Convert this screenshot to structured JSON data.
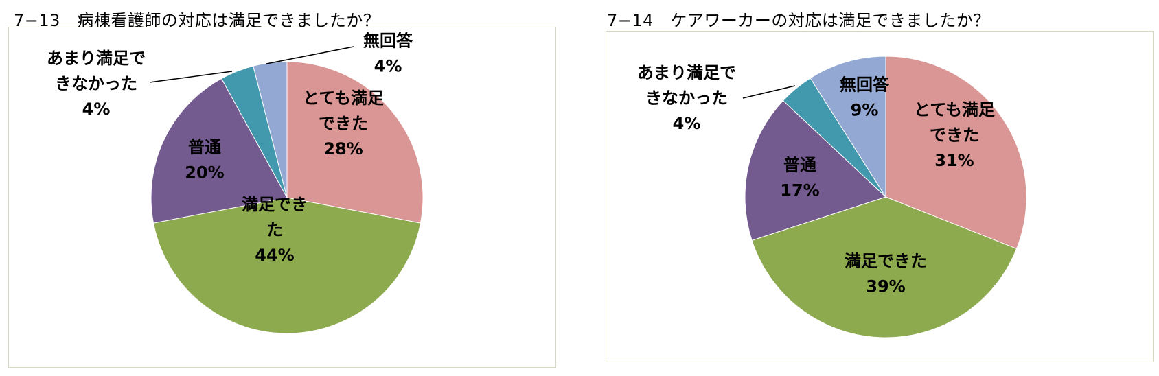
{
  "colors": {
    "very_satisfied": "#d99694",
    "satisfied": "#8eaa4f",
    "normal": "#735a8f",
    "not_very_satisfied": "#4298ad",
    "no_answer": "#93a8d2",
    "panel_border": "#d6d9c2"
  },
  "chart_data": [
    {
      "type": "pie",
      "title": "7−13　病棟看護師の対応は満足できましたか？",
      "slices": [
        {
          "key": "very_satisfied",
          "lines": [
            "とても満足",
            "できた"
          ],
          "pct": "28%",
          "value": 28
        },
        {
          "key": "satisfied",
          "lines": [
            "満足でき",
            "た"
          ],
          "pct": "44%",
          "value": 44
        },
        {
          "key": "normal",
          "lines": [
            "普通"
          ],
          "pct": "20%",
          "value": 20
        },
        {
          "key": "not_very_satisfied",
          "lines": [
            "あまり満足で",
            "きなかった"
          ],
          "pct": "4%",
          "value": 4
        },
        {
          "key": "no_answer",
          "lines": [
            "無回答"
          ],
          "pct": "4%",
          "value": 4
        }
      ]
    },
    {
      "type": "pie",
      "title": "7−14　ケアワーカーの対応は満足できましたか？",
      "slices": [
        {
          "key": "very_satisfied",
          "lines": [
            "とても満足",
            "できた"
          ],
          "pct": "31%",
          "value": 31
        },
        {
          "key": "satisfied",
          "lines": [
            "満足できた"
          ],
          "pct": "39%",
          "value": 39
        },
        {
          "key": "normal",
          "lines": [
            "普通"
          ],
          "pct": "17%",
          "value": 17
        },
        {
          "key": "not_very_satisfied",
          "lines": [
            "あまり満足で",
            "きなかった"
          ],
          "pct": "4%",
          "value": 4
        },
        {
          "key": "no_answer",
          "lines": [
            "無回答"
          ],
          "pct": "9%",
          "value": 9
        }
      ]
    }
  ]
}
